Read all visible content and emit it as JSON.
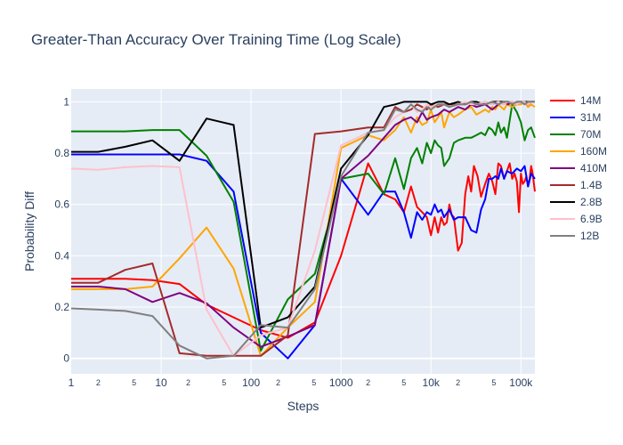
{
  "chart_data": {
    "type": "line",
    "title": "Greater-Than Accuracy Over Training Time (Log Scale)",
    "xlabel": "Steps",
    "ylabel": "Probability Diff",
    "x_scale": "log",
    "xlim": [
      1,
      143000
    ],
    "ylim": [
      -0.06,
      1.05
    ],
    "grid": true,
    "legend_position": "right",
    "x_major_ticks": [
      {
        "value": 1,
        "label": "1"
      },
      {
        "value": 10,
        "label": "10"
      },
      {
        "value": 100,
        "label": "100"
      },
      {
        "value": 1000,
        "label": "1000"
      },
      {
        "value": 10000,
        "label": "10k"
      },
      {
        "value": 100000,
        "label": "100k"
      }
    ],
    "x_minor_ticks": [
      {
        "value": 2,
        "label": "2"
      },
      {
        "value": 5,
        "label": "5"
      },
      {
        "value": 20,
        "label": "2"
      },
      {
        "value": 50,
        "label": "5"
      },
      {
        "value": 200,
        "label": "2"
      },
      {
        "value": 500,
        "label": "5"
      },
      {
        "value": 2000,
        "label": "2"
      },
      {
        "value": 5000,
        "label": "5"
      },
      {
        "value": 20000,
        "label": "2"
      },
      {
        "value": 50000,
        "label": "5"
      }
    ],
    "y_ticks": [
      {
        "value": 0,
        "label": "0"
      },
      {
        "value": 0.2,
        "label": "0.2"
      },
      {
        "value": 0.4,
        "label": "0.4"
      },
      {
        "value": 0.6,
        "label": "0.6"
      },
      {
        "value": 0.8,
        "label": "0.8"
      },
      {
        "value": 1,
        "label": "1"
      }
    ],
    "series": [
      {
        "name": "14M",
        "color": "#ff0000",
        "x": [
          1,
          2,
          4,
          8,
          16,
          32,
          64,
          128,
          256,
          512,
          1000,
          2000,
          3000,
          4000,
          5000,
          6000,
          7000,
          8000,
          9000,
          10000,
          11000,
          12000,
          13000,
          14000,
          15000,
          16000,
          17000,
          18000,
          20000,
          22000,
          24000,
          26000,
          28000,
          30000,
          33000,
          36000,
          40000,
          44000,
          48000,
          52000,
          56000,
          60000,
          65000,
          70000,
          75000,
          80000,
          85000,
          90000,
          95000,
          100000,
          105000,
          110000,
          115000,
          120000,
          125000,
          130000,
          135000,
          143000
        ],
        "y": [
          0.31,
          0.31,
          0.31,
          0.305,
          0.29,
          0.21,
          0.16,
          0.11,
          0.08,
          0.14,
          0.4,
          0.76,
          0.64,
          0.62,
          0.57,
          0.67,
          0.59,
          0.57,
          0.55,
          0.48,
          0.55,
          0.49,
          0.55,
          0.52,
          0.53,
          0.6,
          0.56,
          0.55,
          0.42,
          0.45,
          0.64,
          0.71,
          0.65,
          0.75,
          0.71,
          0.63,
          0.68,
          0.72,
          0.69,
          0.64,
          0.76,
          0.75,
          0.7,
          0.73,
          0.76,
          0.7,
          0.72,
          0.69,
          0.57,
          0.72,
          0.68,
          0.69,
          0.71,
          0.67,
          0.7,
          0.75,
          0.72,
          0.65
        ]
      },
      {
        "name": "31M",
        "color": "#0000ff",
        "x": [
          1,
          2,
          4,
          8,
          16,
          32,
          64,
          128,
          256,
          512,
          1000,
          2000,
          3000,
          4000,
          5000,
          6000,
          7000,
          8000,
          9000,
          10000,
          11000,
          12000,
          13000,
          14000,
          16000,
          18000,
          20000,
          24000,
          28000,
          32000,
          36000,
          40000,
          44000,
          48000,
          52000,
          56000,
          60000,
          65000,
          70000,
          80000,
          90000,
          100000,
          110000,
          120000,
          130000,
          143000
        ],
        "y": [
          0.795,
          0.795,
          0.795,
          0.795,
          0.795,
          0.77,
          0.65,
          0.1,
          0.0,
          0.13,
          0.7,
          0.56,
          0.65,
          0.65,
          0.57,
          0.47,
          0.57,
          0.54,
          0.57,
          0.56,
          0.6,
          0.57,
          0.58,
          0.55,
          0.58,
          0.54,
          0.55,
          0.55,
          0.5,
          0.49,
          0.58,
          0.62,
          0.7,
          0.7,
          0.71,
          0.7,
          0.74,
          0.7,
          0.73,
          0.72,
          0.74,
          0.73,
          0.75,
          0.67,
          0.72,
          0.7
        ]
      },
      {
        "name": "70M",
        "color": "#008000",
        "x": [
          1,
          2,
          4,
          8,
          16,
          32,
          64,
          128,
          256,
          512,
          1000,
          2000,
          3000,
          4000,
          5000,
          6000,
          7000,
          8000,
          9000,
          10000,
          11000,
          12000,
          13000,
          14000,
          16000,
          18000,
          20000,
          24000,
          28000,
          32000,
          36000,
          40000,
          44000,
          48000,
          52000,
          56000,
          60000,
          65000,
          70000,
          80000,
          90000,
          100000,
          110000,
          120000,
          130000,
          143000
        ],
        "y": [
          0.885,
          0.885,
          0.885,
          0.89,
          0.89,
          0.79,
          0.61,
          0.03,
          0.23,
          0.33,
          0.7,
          0.72,
          0.64,
          0.78,
          0.66,
          0.78,
          0.82,
          0.76,
          0.84,
          0.8,
          0.85,
          0.83,
          0.82,
          0.75,
          0.78,
          0.84,
          0.85,
          0.86,
          0.86,
          0.87,
          0.88,
          0.87,
          0.9,
          0.89,
          0.87,
          0.92,
          0.88,
          0.9,
          0.86,
          0.99,
          0.96,
          0.92,
          0.85,
          0.89,
          0.9,
          0.86
        ]
      },
      {
        "name": "160M",
        "color": "#ffa500",
        "x": [
          1,
          2,
          4,
          8,
          16,
          32,
          64,
          128,
          256,
          512,
          1000,
          2000,
          3000,
          4000,
          5000,
          6000,
          7000,
          8000,
          9000,
          10000,
          11000,
          12000,
          13000,
          14000,
          16000,
          18000,
          20000,
          24000,
          28000,
          32000,
          36000,
          40000,
          44000,
          48000,
          52000,
          56000,
          60000,
          65000,
          70000,
          80000,
          90000,
          100000,
          110000,
          120000,
          130000,
          143000
        ],
        "y": [
          0.27,
          0.27,
          0.27,
          0.28,
          0.39,
          0.51,
          0.35,
          0.01,
          0.12,
          0.22,
          0.82,
          0.87,
          0.85,
          0.89,
          0.94,
          0.88,
          0.94,
          0.91,
          0.92,
          0.97,
          0.92,
          0.94,
          0.96,
          0.9,
          0.96,
          0.94,
          0.95,
          0.97,
          0.98,
          0.95,
          0.96,
          0.97,
          0.96,
          0.98,
          0.97,
          0.99,
          0.98,
          0.97,
          0.99,
          0.98,
          0.99,
          0.99,
          1.0,
          0.98,
          0.99,
          0.98
        ]
      },
      {
        "name": "410M",
        "color": "#800080",
        "x": [
          1,
          2,
          4,
          8,
          16,
          32,
          64,
          128,
          256,
          512,
          1000,
          2000,
          3000,
          4000,
          5000,
          6000,
          7000,
          8000,
          9000,
          10000,
          12000,
          14000,
          16000,
          20000,
          24000,
          28000,
          32000,
          40000,
          48000,
          56000,
          64000,
          72000,
          80000,
          90000,
          100000,
          110000,
          120000,
          130000,
          143000
        ],
        "y": [
          0.28,
          0.28,
          0.27,
          0.22,
          0.255,
          0.215,
          0.12,
          0.045,
          0.085,
          0.13,
          0.7,
          0.79,
          0.86,
          0.91,
          0.93,
          0.94,
          0.92,
          0.96,
          0.93,
          0.94,
          0.95,
          0.97,
          0.96,
          0.98,
          0.97,
          0.99,
          0.98,
          0.99,
          0.97,
          0.99,
          1.0,
          0.99,
          1.0,
          0.99,
          1.0,
          1.0,
          0.99,
          1.0,
          1.0
        ]
      },
      {
        "name": "1.4B",
        "color": "#a52a2a",
        "x": [
          1,
          2,
          4,
          8,
          16,
          32,
          64,
          128,
          256,
          512,
          1000,
          2000,
          3000,
          4000,
          5000,
          6000,
          7000,
          8000,
          9000,
          10000,
          12000,
          14000,
          16000,
          20000,
          24000,
          28000,
          32000,
          40000,
          48000,
          56000,
          64000,
          72000,
          80000,
          90000,
          100000,
          110000,
          120000,
          130000,
          143000
        ],
        "y": [
          0.295,
          0.295,
          0.345,
          0.37,
          0.02,
          0.01,
          0.01,
          0.01,
          0.09,
          0.875,
          0.885,
          0.9,
          0.9,
          0.98,
          0.96,
          0.97,
          0.99,
          0.98,
          0.97,
          0.99,
          0.98,
          0.99,
          0.99,
          0.99,
          0.99,
          1.0,
          0.99,
          1.0,
          0.99,
          1.0,
          0.99,
          1.0,
          1.0,
          0.99,
          1.0,
          1.0,
          0.99,
          1.0,
          1.0
        ]
      },
      {
        "name": "2.8B",
        "color": "#000000",
        "x": [
          1,
          2,
          4,
          8,
          16,
          32,
          64,
          128,
          256,
          512,
          1000,
          2000,
          3000,
          4000,
          5000,
          6000,
          7000,
          8000,
          9000,
          10000,
          12000,
          14000,
          16000,
          20000,
          24000,
          28000,
          32000,
          40000,
          48000,
          56000,
          64000,
          72000,
          80000,
          90000,
          100000,
          110000,
          120000,
          130000,
          143000
        ],
        "y": [
          0.805,
          0.805,
          0.825,
          0.85,
          0.77,
          0.935,
          0.91,
          0.12,
          0.16,
          0.28,
          0.74,
          0.87,
          0.98,
          0.99,
          1.0,
          1.0,
          1.0,
          1.0,
          1.0,
          0.99,
          1.0,
          1.0,
          0.99,
          1.0,
          0.99,
          1.0,
          1.0,
          0.99,
          1.0,
          1.0,
          1.0,
          1.0,
          0.99,
          1.0,
          1.0,
          1.0,
          1.0,
          1.0,
          1.0
        ]
      },
      {
        "name": "6.9B",
        "color": "#ffc0cb",
        "x": [
          1,
          2,
          4,
          8,
          16,
          32,
          64,
          128,
          256,
          512,
          1000,
          2000,
          3000,
          4000,
          5000,
          6000,
          7000,
          8000,
          9000,
          10000,
          12000,
          14000,
          16000,
          20000,
          24000,
          28000,
          32000,
          40000,
          48000,
          56000,
          64000,
          72000,
          80000,
          90000,
          100000,
          110000,
          120000,
          130000,
          143000
        ],
        "y": [
          0.74,
          0.735,
          0.745,
          0.75,
          0.745,
          0.19,
          0.01,
          0.09,
          0.12,
          0.42,
          0.83,
          0.88,
          0.89,
          0.94,
          0.96,
          0.99,
          0.96,
          0.97,
          0.99,
          0.98,
          0.99,
          0.99,
          0.98,
          0.99,
          1.0,
          0.99,
          0.99,
          1.0,
          0.99,
          1.0,
          0.99,
          1.0,
          1.0,
          0.99,
          1.0,
          1.0,
          0.99,
          1.0,
          1.0
        ]
      },
      {
        "name": "12B",
        "color": "#808080",
        "x": [
          1,
          2,
          4,
          8,
          16,
          32,
          64,
          128,
          256,
          512,
          1000,
          2000,
          3000,
          4000,
          5000,
          6000,
          7000,
          8000,
          9000,
          10000,
          12000,
          14000,
          16000,
          20000,
          24000,
          28000,
          32000,
          40000,
          48000,
          56000,
          64000,
          72000,
          80000,
          90000,
          100000,
          110000,
          120000,
          130000,
          143000
        ],
        "y": [
          0.195,
          0.19,
          0.185,
          0.165,
          0.05,
          0.0,
          0.01,
          0.13,
          0.12,
          0.27,
          0.71,
          0.88,
          0.89,
          0.97,
          0.96,
          0.99,
          0.97,
          0.96,
          0.98,
          0.97,
          0.99,
          0.99,
          0.98,
          0.99,
          0.99,
          1.0,
          0.99,
          0.99,
          1.0,
          0.99,
          1.0,
          1.0,
          0.99,
          1.0,
          1.0,
          0.99,
          1.0,
          1.0,
          1.0
        ]
      }
    ]
  }
}
